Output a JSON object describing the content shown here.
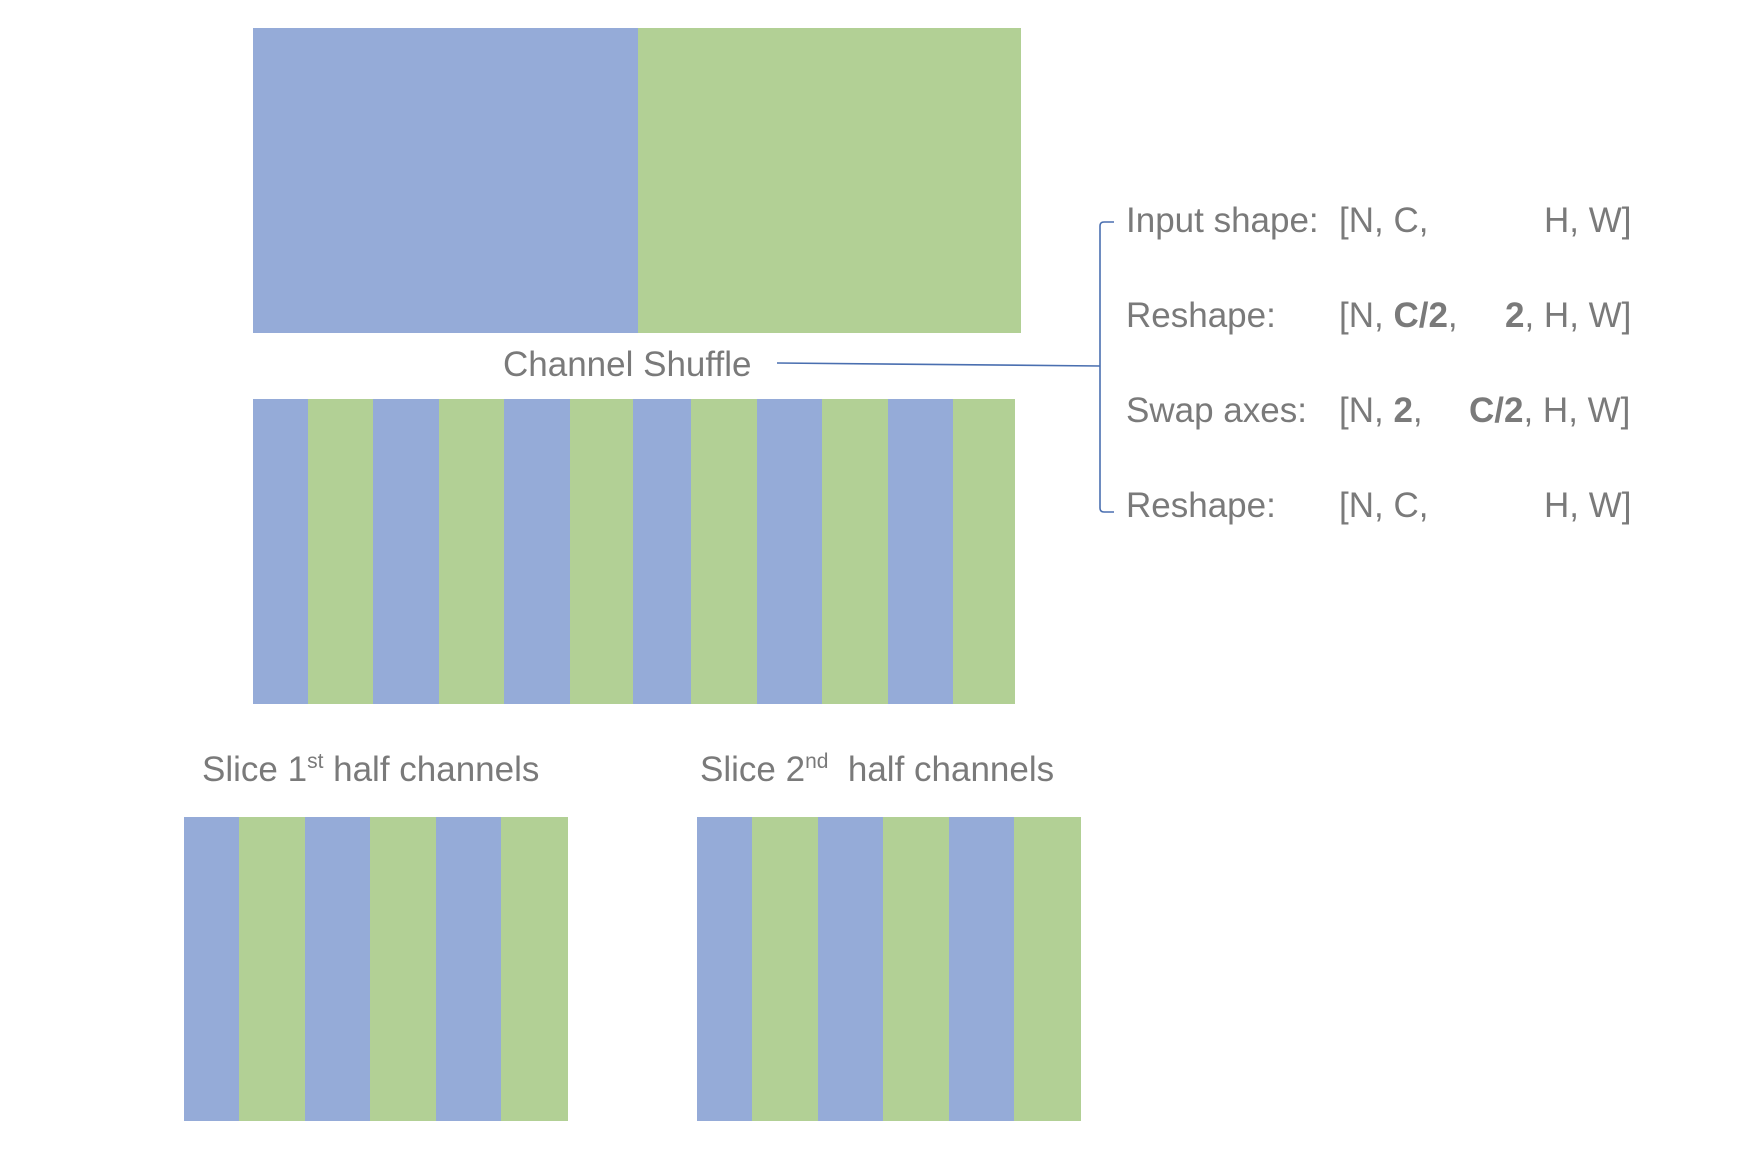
{
  "colors": {
    "blue": "#95abd8",
    "green": "#b2d095",
    "text": "#7a7a7a",
    "line": "#4a6fb0"
  },
  "top_block": {
    "segments": [
      "blue",
      "green"
    ]
  },
  "shuffled_block": {
    "segments": [
      "blue",
      "green",
      "blue",
      "green",
      "blue",
      "green",
      "blue",
      "green",
      "blue",
      "green",
      "blue",
      "green"
    ]
  },
  "slice1_block": {
    "segments": [
      "blue",
      "green",
      "blue",
      "green",
      "blue",
      "green"
    ]
  },
  "slice2_block": {
    "segments": [
      "blue",
      "green",
      "blue",
      "green",
      "blue",
      "green"
    ]
  },
  "labels": {
    "channel_shuffle": "Channel Shuffle",
    "slice1_prefix": "Slice 1",
    "slice1_sup": "st",
    "slice1_suffix": " half channels",
    "slice2_prefix": "Slice 2",
    "slice2_sup": "nd",
    "slice2_suffix": "  half channels"
  },
  "steps": [
    {
      "name": "Input shape:",
      "p1": "[N, C,",
      "p1b": "",
      "p2": "",
      "p2b": "",
      "p3": "H, W]"
    },
    {
      "name": "Reshape:",
      "p1": "[N, ",
      "p1b": "C/2",
      "p2": ",",
      "p2b": "2",
      "p3": ", H, W]"
    },
    {
      "name": "Swap axes:",
      "p1": "[N, ",
      "p1b": "2",
      "p2": ",",
      "p2b": "C/2",
      "p3": ", H, W]"
    },
    {
      "name": "Reshape:",
      "p1": "[N, C,",
      "p1b": "",
      "p2": "",
      "p2b": "",
      "p3": "H, W]"
    }
  ]
}
